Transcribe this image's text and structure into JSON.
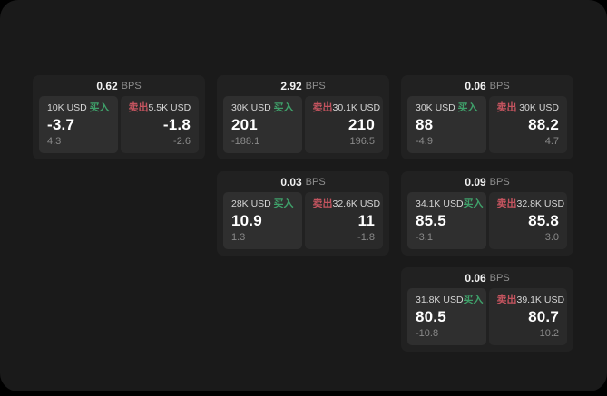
{
  "labels": {
    "bps_unit": "BPS",
    "buy": "买入",
    "sell": "卖出"
  },
  "colors": {
    "background": "#000000",
    "page_bg": "#1a1a1a",
    "card_bg": "#212121",
    "panel_buy_bg": "#2f2f2f",
    "panel_sell_bg": "#2a2a2a",
    "buy_green": "#3fa06a",
    "sell_red": "#c4545f"
  },
  "cards": [
    {
      "bps": "0.62",
      "grid": {
        "row": 1,
        "col": 1
      },
      "buy": {
        "amount": "10K USD",
        "price": "-3.7",
        "delta": "4.3"
      },
      "sell": {
        "amount": "5.5K USD",
        "price": "-1.8",
        "delta": "-2.6"
      }
    },
    {
      "bps": "2.92",
      "grid": {
        "row": 1,
        "col": 2
      },
      "buy": {
        "amount": "30K USD",
        "price": "201",
        "delta": "-188.1"
      },
      "sell": {
        "amount": "30.1K USD",
        "price": "210",
        "delta": "196.5"
      }
    },
    {
      "bps": "0.06",
      "grid": {
        "row": 1,
        "col": 3
      },
      "buy": {
        "amount": "30K USD",
        "price": "88",
        "delta": "-4.9"
      },
      "sell": {
        "amount": "30K USD",
        "price": "88.2",
        "delta": "4.7"
      }
    },
    {
      "bps": "0.03",
      "grid": {
        "row": 2,
        "col": 2
      },
      "buy": {
        "amount": "28K USD",
        "price": "10.9",
        "delta": "1.3"
      },
      "sell": {
        "amount": "32.6K USD",
        "price": "11",
        "delta": "-1.8"
      }
    },
    {
      "bps": "0.09",
      "grid": {
        "row": 2,
        "col": 3
      },
      "buy": {
        "amount": "34.1K USD",
        "price": "85.5",
        "delta": "-3.1"
      },
      "sell": {
        "amount": "32.8K USD",
        "price": "85.8",
        "delta": "3.0"
      }
    },
    {
      "bps": "0.06",
      "grid": {
        "row": 3,
        "col": 3
      },
      "buy": {
        "amount": "31.8K USD",
        "price": "80.5",
        "delta": "-10.8"
      },
      "sell": {
        "amount": "39.1K USD",
        "price": "80.7",
        "delta": "10.2"
      }
    }
  ]
}
